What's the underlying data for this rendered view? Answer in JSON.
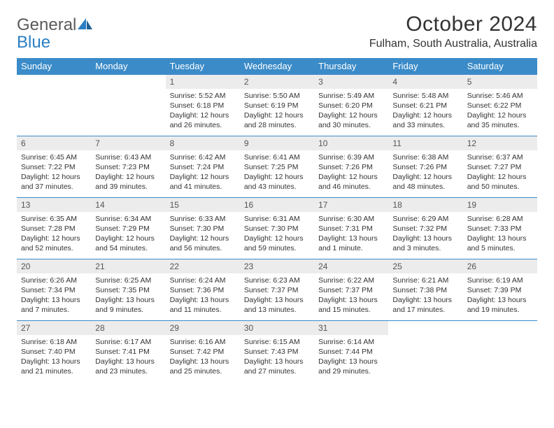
{
  "logo": {
    "text1": "General",
    "text2": "Blue"
  },
  "title": "October 2024",
  "location": "Fulham, South Australia, Australia",
  "colors": {
    "header_bg": "#3b8bc8",
    "header_text": "#ffffff",
    "daynum_bg": "#ececec",
    "border": "#3b8bc8",
    "logo_gray": "#5a5a5a",
    "logo_blue": "#2a7ec4",
    "page_bg": "#ffffff"
  },
  "weekdays": [
    "Sunday",
    "Monday",
    "Tuesday",
    "Wednesday",
    "Thursday",
    "Friday",
    "Saturday"
  ],
  "first_weekday_index": 2,
  "days": [
    {
      "n": 1,
      "sunrise": "5:52 AM",
      "sunset": "6:18 PM",
      "daylight": "12 hours and 26 minutes."
    },
    {
      "n": 2,
      "sunrise": "5:50 AM",
      "sunset": "6:19 PM",
      "daylight": "12 hours and 28 minutes."
    },
    {
      "n": 3,
      "sunrise": "5:49 AM",
      "sunset": "6:20 PM",
      "daylight": "12 hours and 30 minutes."
    },
    {
      "n": 4,
      "sunrise": "5:48 AM",
      "sunset": "6:21 PM",
      "daylight": "12 hours and 33 minutes."
    },
    {
      "n": 5,
      "sunrise": "5:46 AM",
      "sunset": "6:22 PM",
      "daylight": "12 hours and 35 minutes."
    },
    {
      "n": 6,
      "sunrise": "6:45 AM",
      "sunset": "7:22 PM",
      "daylight": "12 hours and 37 minutes."
    },
    {
      "n": 7,
      "sunrise": "6:43 AM",
      "sunset": "7:23 PM",
      "daylight": "12 hours and 39 minutes."
    },
    {
      "n": 8,
      "sunrise": "6:42 AM",
      "sunset": "7:24 PM",
      "daylight": "12 hours and 41 minutes."
    },
    {
      "n": 9,
      "sunrise": "6:41 AM",
      "sunset": "7:25 PM",
      "daylight": "12 hours and 43 minutes."
    },
    {
      "n": 10,
      "sunrise": "6:39 AM",
      "sunset": "7:26 PM",
      "daylight": "12 hours and 46 minutes."
    },
    {
      "n": 11,
      "sunrise": "6:38 AM",
      "sunset": "7:26 PM",
      "daylight": "12 hours and 48 minutes."
    },
    {
      "n": 12,
      "sunrise": "6:37 AM",
      "sunset": "7:27 PM",
      "daylight": "12 hours and 50 minutes."
    },
    {
      "n": 13,
      "sunrise": "6:35 AM",
      "sunset": "7:28 PM",
      "daylight": "12 hours and 52 minutes."
    },
    {
      "n": 14,
      "sunrise": "6:34 AM",
      "sunset": "7:29 PM",
      "daylight": "12 hours and 54 minutes."
    },
    {
      "n": 15,
      "sunrise": "6:33 AM",
      "sunset": "7:30 PM",
      "daylight": "12 hours and 56 minutes."
    },
    {
      "n": 16,
      "sunrise": "6:31 AM",
      "sunset": "7:30 PM",
      "daylight": "12 hours and 59 minutes."
    },
    {
      "n": 17,
      "sunrise": "6:30 AM",
      "sunset": "7:31 PM",
      "daylight": "13 hours and 1 minute."
    },
    {
      "n": 18,
      "sunrise": "6:29 AM",
      "sunset": "7:32 PM",
      "daylight": "13 hours and 3 minutes."
    },
    {
      "n": 19,
      "sunrise": "6:28 AM",
      "sunset": "7:33 PM",
      "daylight": "13 hours and 5 minutes."
    },
    {
      "n": 20,
      "sunrise": "6:26 AM",
      "sunset": "7:34 PM",
      "daylight": "13 hours and 7 minutes."
    },
    {
      "n": 21,
      "sunrise": "6:25 AM",
      "sunset": "7:35 PM",
      "daylight": "13 hours and 9 minutes."
    },
    {
      "n": 22,
      "sunrise": "6:24 AM",
      "sunset": "7:36 PM",
      "daylight": "13 hours and 11 minutes."
    },
    {
      "n": 23,
      "sunrise": "6:23 AM",
      "sunset": "7:37 PM",
      "daylight": "13 hours and 13 minutes."
    },
    {
      "n": 24,
      "sunrise": "6:22 AM",
      "sunset": "7:37 PM",
      "daylight": "13 hours and 15 minutes."
    },
    {
      "n": 25,
      "sunrise": "6:21 AM",
      "sunset": "7:38 PM",
      "daylight": "13 hours and 17 minutes."
    },
    {
      "n": 26,
      "sunrise": "6:19 AM",
      "sunset": "7:39 PM",
      "daylight": "13 hours and 19 minutes."
    },
    {
      "n": 27,
      "sunrise": "6:18 AM",
      "sunset": "7:40 PM",
      "daylight": "13 hours and 21 minutes."
    },
    {
      "n": 28,
      "sunrise": "6:17 AM",
      "sunset": "7:41 PM",
      "daylight": "13 hours and 23 minutes."
    },
    {
      "n": 29,
      "sunrise": "6:16 AM",
      "sunset": "7:42 PM",
      "daylight": "13 hours and 25 minutes."
    },
    {
      "n": 30,
      "sunrise": "6:15 AM",
      "sunset": "7:43 PM",
      "daylight": "13 hours and 27 minutes."
    },
    {
      "n": 31,
      "sunrise": "6:14 AM",
      "sunset": "7:44 PM",
      "daylight": "13 hours and 29 minutes."
    }
  ],
  "labels": {
    "sunrise": "Sunrise:",
    "sunset": "Sunset:",
    "daylight": "Daylight:"
  }
}
